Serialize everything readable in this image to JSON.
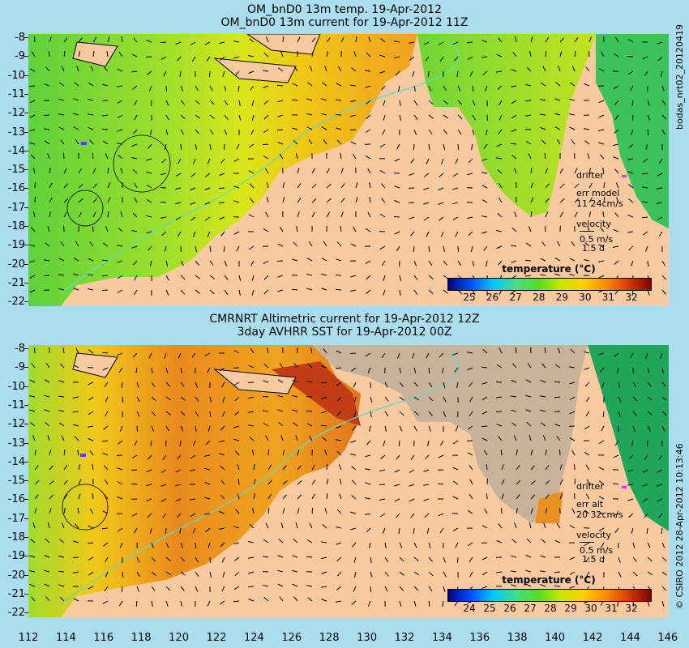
{
  "top": {
    "title1": "OM_bnD0 13m temp. 19-Apr-2012",
    "title2": "OM_bnD0 13m current for 19-Apr-2012 11Z",
    "drifter": "drifter",
    "err_label": "err model",
    "err_value": "11 24cm/s",
    "velocity": "velocity",
    "vel_speed": "0.5 m/s",
    "vel_days": "1.5 d",
    "colorbar_title": "temperature (°C)",
    "colorbar_ticks": [
      "25",
      "26",
      "27",
      "28",
      "29",
      "30",
      "31",
      "32"
    ]
  },
  "bottom": {
    "title1": "CMRNRT Altimetric current for 19-Apr-2012 12Z",
    "title2": "3day AVHRR SST for 19-Apr-2012 00Z",
    "drifter": "drifter",
    "err_label": "err alt",
    "err_value": "20 32cm/s",
    "velocity": "velocity",
    "vel_speed": "0.5 m/s",
    "vel_days": "1.5 d",
    "colorbar_title": "temperature (°C)",
    "colorbar_ticks": [
      "24",
      "25",
      "26",
      "27",
      "28",
      "29",
      "30",
      "31",
      "32"
    ]
  },
  "y_ticks": [
    "-8",
    "-9",
    "-10",
    "-11",
    "-12",
    "-13",
    "-14",
    "-15",
    "-16",
    "-17",
    "-18",
    "-19",
    "-20",
    "-21",
    "-22"
  ],
  "x_ticks": [
    "112",
    "114",
    "116",
    "118",
    "120",
    "122",
    "124",
    "126",
    "128",
    "130",
    "132",
    "134",
    "136",
    "138",
    "140",
    "142",
    "144",
    "146"
  ],
  "side_top": "bodas_nrt02_20120419",
  "side_bottom": "© CSIRO 2012   28-Apr-2012 10:13:46",
  "colors": {
    "land": "#f9c9a0",
    "background": "#aaddee",
    "nodata": "#c8b39a",
    "drifter": "#ff22ff"
  }
}
